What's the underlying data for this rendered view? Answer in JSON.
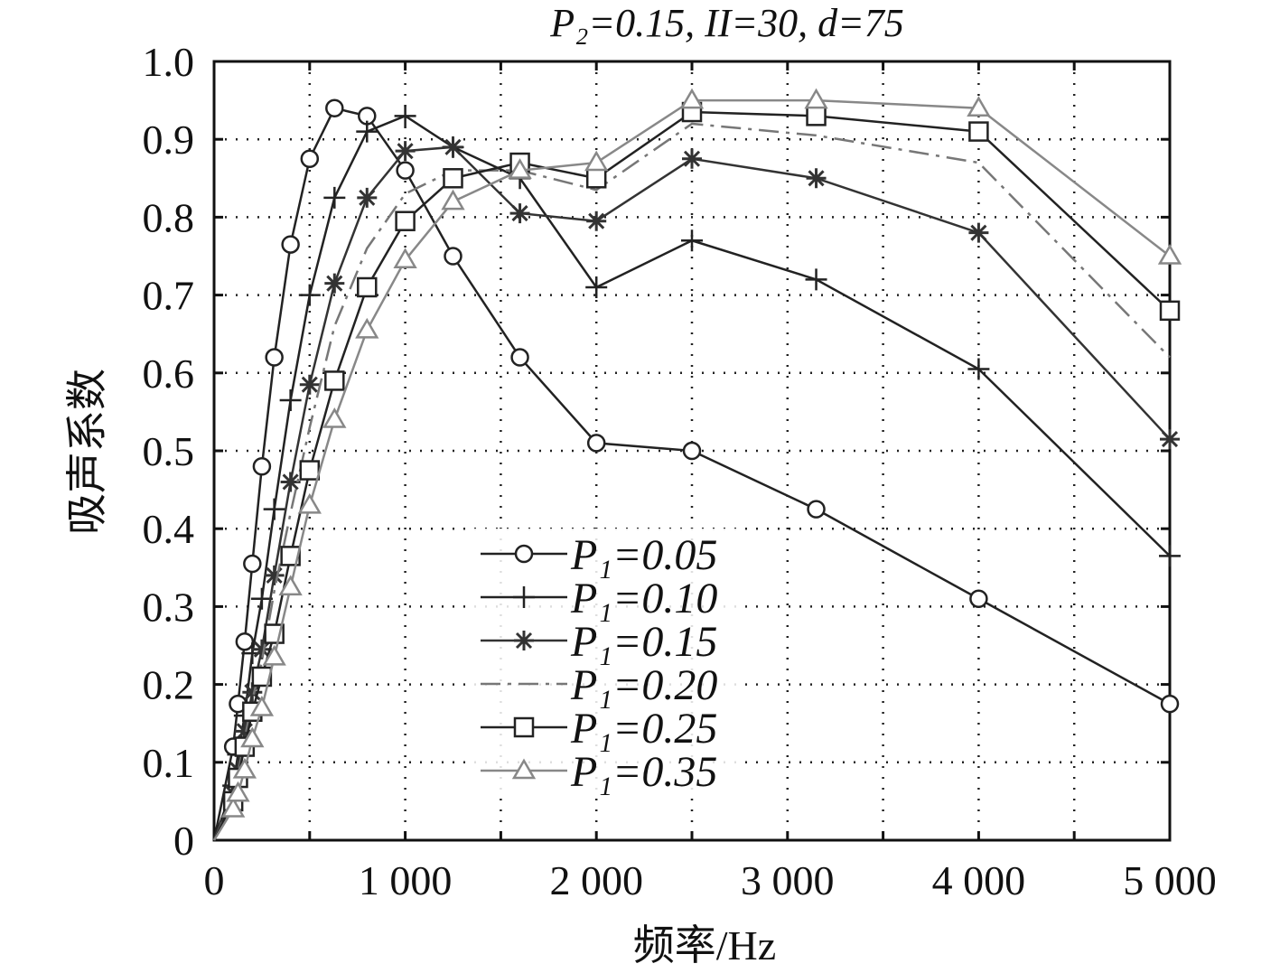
{
  "chart_data": {
    "type": "line",
    "title": "P₂=0.15, II=30, d=75",
    "xlabel": "频率/Hz",
    "ylabel": "吸声系数",
    "xlim": [
      0,
      5000
    ],
    "ylim": [
      0,
      1.0
    ],
    "grid": true,
    "legend_position": "lower-center",
    "x_ticks": [
      0,
      1000,
      2000,
      3000,
      4000,
      5000
    ],
    "x_tick_labels": [
      "0",
      "1 000",
      "2 000",
      "3 000",
      "4 000",
      "5 000"
    ],
    "y_ticks": [
      0,
      0.1,
      0.2,
      0.3,
      0.4,
      0.5,
      0.6,
      0.7,
      0.8,
      0.9,
      1.0
    ],
    "y_tick_labels": [
      "0",
      "0.1",
      "0.2",
      "0.3",
      "0.4",
      "0.5",
      "0.6",
      "0.7",
      "0.8",
      "0.9",
      "1.0"
    ],
    "x": [
      0,
      100,
      125,
      160,
      200,
      250,
      315,
      400,
      500,
      630,
      800,
      1000,
      1250,
      1600,
      2000,
      2500,
      3150,
      4000,
      5000
    ],
    "series": [
      {
        "name": "P₁=0.05",
        "marker": "circle",
        "color": "#222222",
        "dash": "",
        "values": [
          0,
          0.12,
          0.175,
          0.255,
          0.355,
          0.48,
          0.62,
          0.765,
          0.875,
          0.94,
          0.93,
          0.86,
          0.75,
          0.62,
          0.51,
          0.5,
          0.425,
          0.31,
          0.175
        ]
      },
      {
        "name": "P₁=0.10",
        "marker": "plus",
        "color": "#222222",
        "dash": "",
        "values": [
          0,
          0.07,
          0.11,
          0.16,
          0.24,
          0.31,
          0.425,
          0.565,
          0.7,
          0.825,
          0.91,
          0.93,
          0.89,
          0.85,
          0.71,
          0.77,
          0.72,
          0.605,
          0.365
        ]
      },
      {
        "name": "P₁=0.15",
        "marker": "star",
        "color": "#333333",
        "dash": "",
        "values": [
          0,
          0.06,
          0.09,
          0.14,
          0.19,
          0.245,
          0.34,
          0.46,
          0.585,
          0.715,
          0.825,
          0.885,
          0.89,
          0.805,
          0.795,
          0.875,
          0.85,
          0.78,
          0.515
        ]
      },
      {
        "name": "P₁=0.20",
        "marker": "none",
        "color": "#777777",
        "dash": "22 8 4 8",
        "values": [
          0,
          0.055,
          0.085,
          0.13,
          0.18,
          0.23,
          0.32,
          0.42,
          0.53,
          0.66,
          0.76,
          0.83,
          0.86,
          0.86,
          0.835,
          0.92,
          0.905,
          0.87,
          0.62
        ]
      },
      {
        "name": "P₁=0.25",
        "marker": "square",
        "color": "#222222",
        "dash": "",
        "values": [
          0,
          0.05,
          0.08,
          0.12,
          0.165,
          0.21,
          0.265,
          0.365,
          0.475,
          0.59,
          0.71,
          0.795,
          0.85,
          0.87,
          0.85,
          0.935,
          0.93,
          0.91,
          0.68
        ]
      },
      {
        "name": "P₁=0.35",
        "marker": "triangle",
        "color": "#888888",
        "dash": "",
        "values": [
          0,
          0.04,
          0.06,
          0.09,
          0.13,
          0.17,
          0.235,
          0.325,
          0.43,
          0.54,
          0.655,
          0.745,
          0.82,
          0.86,
          0.87,
          0.95,
          0.95,
          0.94,
          0.75
        ]
      }
    ]
  }
}
